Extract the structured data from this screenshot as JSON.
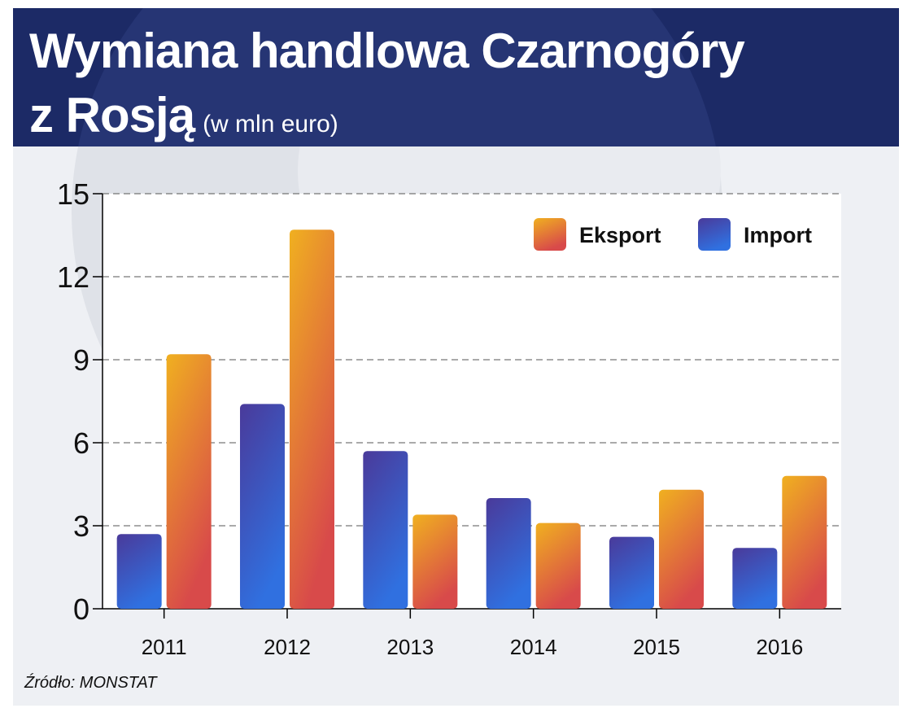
{
  "header": {
    "title_line1": "Wymiana handlowa Czarnogóry",
    "title_line2": "z Rosją",
    "unit": "(w mln euro)"
  },
  "source": "Źródło: MONSTAT",
  "colors": {
    "header_bg": "#1c2a66",
    "import_top": "#4a3a9a",
    "import_bottom": "#3070e0",
    "export_top": "#f0b020",
    "export_bottom": "#d84a4a"
  },
  "chart_data": {
    "type": "bar",
    "title": "Wymiana handlowa Czarnogóry z Rosją",
    "ylabel": "",
    "xlabel": "",
    "categories": [
      "2011",
      "2012",
      "2013",
      "2014",
      "2015",
      "2016"
    ],
    "ylim": [
      0,
      15
    ],
    "yticks": [
      0,
      3,
      6,
      9,
      12,
      15
    ],
    "grid": true,
    "legend_position": "top-right",
    "series": [
      {
        "name": "Import",
        "values": [
          2.7,
          7.4,
          5.7,
          4.0,
          2.6,
          2.2
        ]
      },
      {
        "name": "Eksport",
        "values": [
          9.2,
          13.7,
          3.4,
          3.1,
          4.3,
          4.8
        ]
      }
    ],
    "legend_order": [
      "Eksport",
      "Import"
    ]
  }
}
